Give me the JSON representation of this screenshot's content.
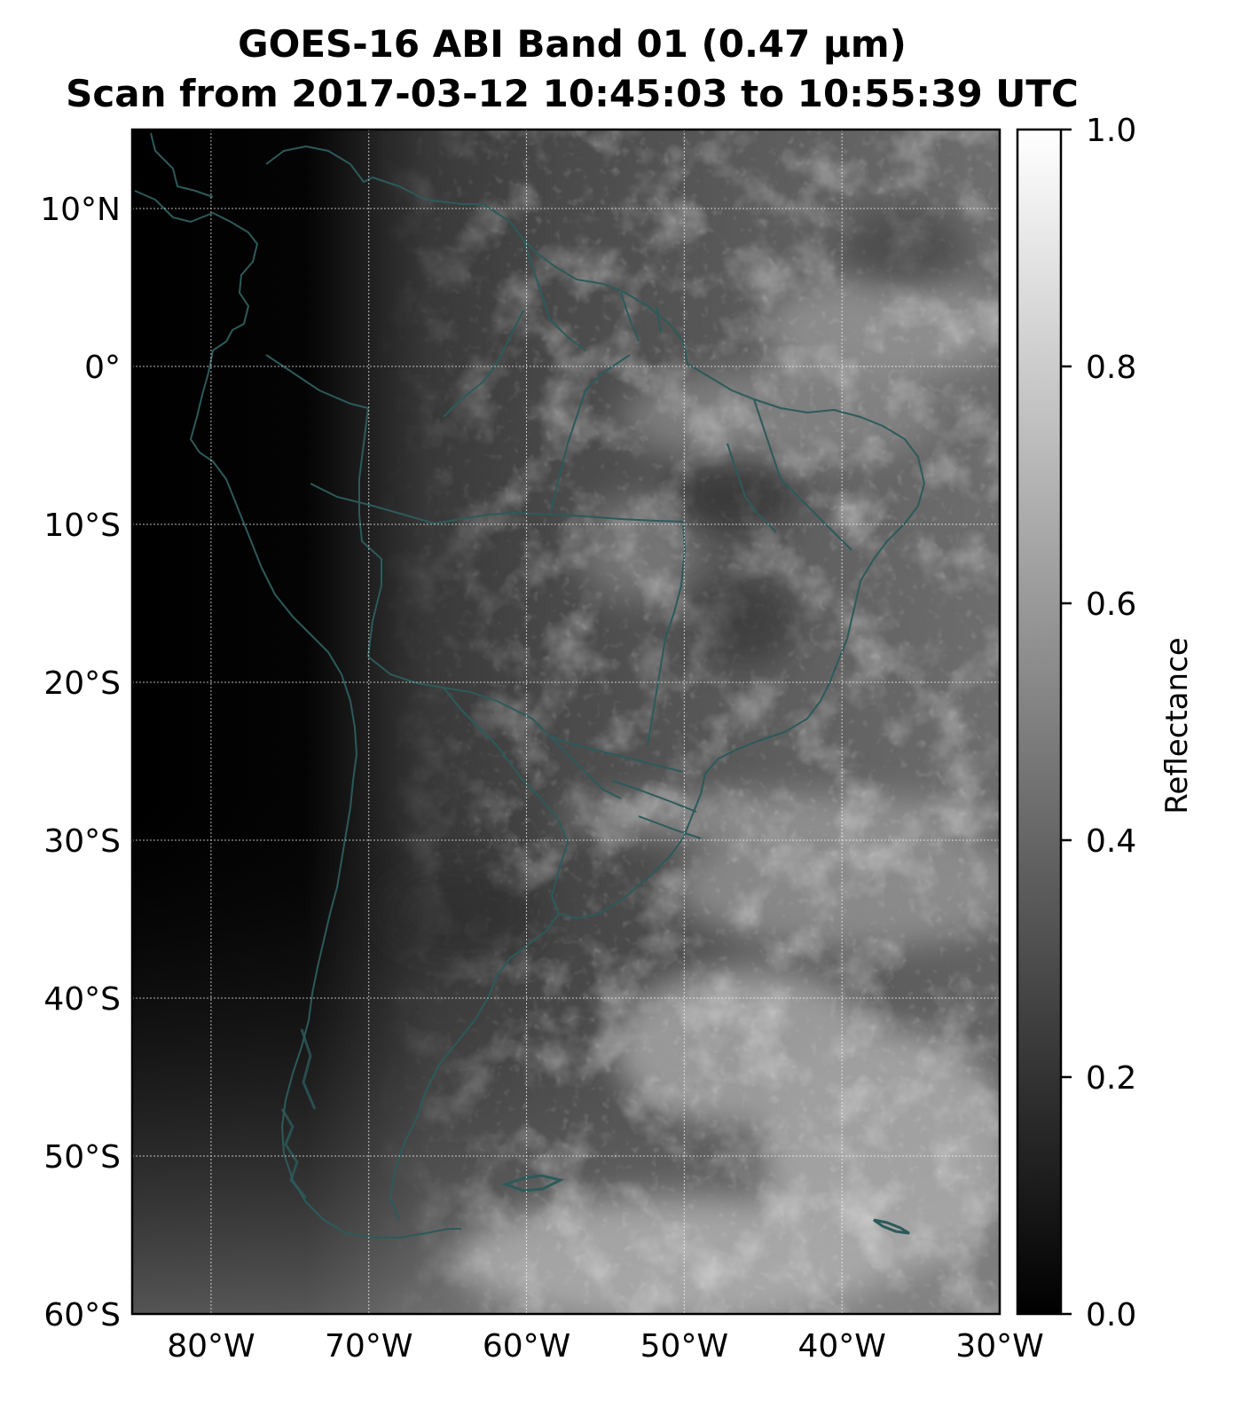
{
  "title": {
    "line1": "GOES-16 ABI Band 01 (0.47 µm)",
    "line2": "Scan from 2017-03-12 10:45:03 to 10:55:39 UTC"
  },
  "map": {
    "lon_range": [
      -85,
      -30
    ],
    "lat_range": [
      -60,
      15
    ],
    "lon_ticks": [
      {
        "value": -80,
        "label": "80°W"
      },
      {
        "value": -70,
        "label": "70°W"
      },
      {
        "value": -60,
        "label": "60°W"
      },
      {
        "value": -50,
        "label": "50°W"
      },
      {
        "value": -40,
        "label": "40°W"
      },
      {
        "value": -30,
        "label": "30°W"
      }
    ],
    "lat_ticks": [
      {
        "value": 10,
        "label": "10°N"
      },
      {
        "value": 0,
        "label": "0°"
      },
      {
        "value": -10,
        "label": "10°S"
      },
      {
        "value": -20,
        "label": "20°S"
      },
      {
        "value": -30,
        "label": "30°S"
      },
      {
        "value": -40,
        "label": "40°S"
      },
      {
        "value": -50,
        "label": "50°S"
      },
      {
        "value": -60,
        "label": "60°S"
      }
    ],
    "gridlines": true,
    "coastline_color": "#2d5a5a"
  },
  "colorbar": {
    "label": "Reflectance",
    "range": [
      0.0,
      1.0
    ],
    "ticks": [
      {
        "value": 0.0,
        "label": "0.0"
      },
      {
        "value": 0.2,
        "label": "0.2"
      },
      {
        "value": 0.4,
        "label": "0.4"
      },
      {
        "value": 0.6,
        "label": "0.6"
      },
      {
        "value": 0.8,
        "label": "0.8"
      },
      {
        "value": 1.0,
        "label": "1.0"
      }
    ],
    "colormap": "greys"
  }
}
